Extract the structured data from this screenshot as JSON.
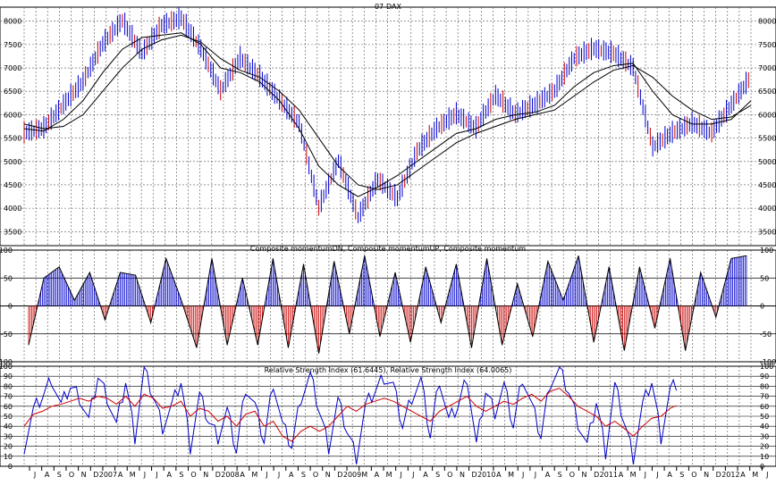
{
  "chart_data": [
    {
      "type": "candlestick",
      "title": "07-DAX",
      "ylim": [
        3200,
        8300
      ],
      "yticks": [
        3500,
        4000,
        4500,
        5000,
        5500,
        6000,
        6500,
        7000,
        7500,
        8000
      ],
      "grid": true,
      "series": [
        {
          "name": "",
          "values": [
            5600,
            5700,
            6200,
            6700,
            7500,
            8000,
            7300,
            7900,
            8050,
            7400,
            6500,
            7200,
            6800,
            6300,
            5800,
            4000,
            5000,
            3800,
            4600,
            4200,
            5200,
            5700,
            6000,
            5700,
            6400,
            6000,
            6200,
            6500,
            7200,
            7400,
            7300,
            7000,
            5300,
            5600,
            5800,
            5600,
            6200,
            6800
          ]
        }
      ],
      "moving_averages": [
        {
          "name": "",
          "values": [
            5700,
            5650,
            5900,
            6300,
            6900,
            7400,
            7650,
            7700,
            7750,
            7500,
            7000,
            6900,
            6700,
            6300,
            5700,
            4900,
            4500,
            4250,
            4450,
            4700,
            5000,
            5300,
            5600,
            5700,
            5900,
            6000,
            6050,
            6200,
            6600,
            6900,
            7050,
            7100,
            6500,
            6000,
            5800,
            5800,
            5900,
            6300
          ]
        },
        {
          "name": "",
          "values": [
            5800,
            5700,
            5750,
            6000,
            6500,
            7000,
            7400,
            7600,
            7700,
            7550,
            7200,
            6950,
            6800,
            6500,
            6100,
            5500,
            4900,
            4500,
            4400,
            4500,
            4800,
            5100,
            5400,
            5600,
            5750,
            5900,
            6000,
            6100,
            6400,
            6700,
            6950,
            7050,
            6800,
            6400,
            6100,
            5900,
            5950,
            6200
          ]
        }
      ]
    },
    {
      "type": "bar",
      "title": "Composite momentumDN, Composite momentumUP, Composite momentum",
      "ylim": [
        -100,
        100
      ],
      "yticks": [
        -100,
        -50,
        0,
        50,
        100
      ],
      "grid": true,
      "values": [
        -70,
        50,
        70,
        10,
        60,
        -25,
        60,
        55,
        -30,
        85,
        10,
        -75,
        85,
        -70,
        50,
        -70,
        85,
        -75,
        75,
        -85,
        80,
        -50,
        90,
        -55,
        60,
        -65,
        70,
        -30,
        75,
        -75,
        85,
        -70,
        40,
        -55,
        80,
        10,
        90,
        -65,
        70,
        -80,
        70,
        -40,
        85,
        -80,
        60,
        -20,
        85,
        90
      ]
    },
    {
      "type": "line",
      "title": "Relative Strength Index (61.6445), Relative Strength Index (64.0065)",
      "ylim": [
        0,
        100
      ],
      "yticks": [
        0,
        10,
        20,
        30,
        40,
        50,
        60,
        70,
        80,
        90,
        100
      ],
      "grid": true,
      "x_labels": [
        "J",
        "A",
        "S",
        "O",
        "N",
        "D",
        "2007",
        "A",
        "M",
        "J",
        "J",
        "A",
        "S",
        "O",
        "N",
        "D",
        "2008",
        "A",
        "M",
        "J",
        "J",
        "A",
        "S",
        "O",
        "N",
        "D",
        "2009",
        "M",
        "A",
        "M",
        "J",
        "J",
        "A",
        "S",
        "O",
        "N",
        "D",
        "2010",
        "A",
        "M",
        "J",
        "J",
        "A",
        "S",
        "O",
        "N",
        "D",
        "2011",
        "A",
        "M",
        "J",
        "J",
        "A",
        "S",
        "O",
        "N",
        "D",
        "2012",
        "A",
        "M",
        "J"
      ],
      "series": [
        {
          "name": "Relative Strength Index (61.6445)",
          "color": "#0000cc",
          "values": [
            20,
            55,
            70,
            88,
            60,
            80,
            70,
            45,
            90,
            70,
            40,
            85,
            30,
            95,
            70,
            40,
            60,
            85,
            20,
            70,
            45,
            30,
            55,
            15,
            80,
            60,
            25,
            85,
            40,
            20,
            70,
            90,
            55,
            20,
            65,
            35,
            10,
            60,
            75,
            90,
            80,
            40,
            70,
            85,
            30,
            88,
            45,
            60,
            90,
            20,
            75,
            55,
            80,
            40,
            90,
            60,
            30,
            85,
            95,
            75,
            45,
            20,
            65,
            15,
            80,
            45,
            10,
            60,
            85,
            30,
            75,
            85
          ]
        },
        {
          "name": "Relative Strength Index (64.0065)",
          "color": "#cc0000",
          "values": [
            40,
            52,
            55,
            60,
            62,
            65,
            68,
            65,
            70,
            68,
            62,
            70,
            60,
            72,
            68,
            58,
            60,
            65,
            50,
            58,
            55,
            45,
            50,
            40,
            52,
            55,
            40,
            45,
            30,
            25,
            35,
            40,
            35,
            40,
            50,
            60,
            55,
            62,
            65,
            68,
            65,
            60,
            55,
            50,
            45,
            55,
            60,
            65,
            70,
            60,
            55,
            60,
            65,
            62,
            68,
            72,
            65,
            75,
            78,
            70,
            60,
            55,
            50,
            40,
            45,
            38,
            30,
            40,
            48,
            50,
            58,
            62
          ]
        }
      ]
    }
  ]
}
